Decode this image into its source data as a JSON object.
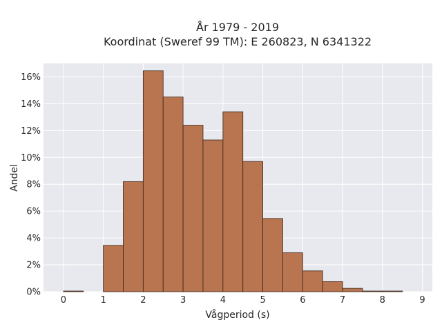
{
  "chart_data": {
    "type": "bar",
    "title": [
      "År 1979 - 2019",
      "Koordinat (Sweref 99 TM): E 260823, N 6341322"
    ],
    "xlabel": "Vågperiod (s)",
    "ylabel": "Andel",
    "bin_width": 0.5,
    "bins": [
      0,
      0.5,
      1,
      1.5,
      2,
      2.5,
      3,
      3.5,
      4,
      4.5,
      5,
      5.5,
      6,
      6.5,
      7,
      7.5,
      8
    ],
    "values": [
      0.05,
      0,
      3.45,
      8.2,
      16.45,
      14.5,
      12.4,
      11.3,
      13.4,
      9.7,
      5.45,
      2.9,
      1.55,
      0.75,
      0.25,
      0.05,
      0.05
    ],
    "xlim": [
      -0.5,
      9.25
    ],
    "ylim": [
      0,
      17
    ],
    "xticks": [
      0,
      1,
      2,
      3,
      4,
      5,
      6,
      7,
      8,
      9
    ],
    "xtick_labels": [
      "0",
      "1",
      "2",
      "3",
      "4",
      "5",
      "6",
      "7",
      "8",
      "9"
    ],
    "yticks": [
      0,
      2,
      4,
      6,
      8,
      10,
      12,
      14,
      16
    ],
    "ytick_labels": [
      "0%",
      "2%",
      "4%",
      "6%",
      "8%",
      "10%",
      "12%",
      "14%",
      "16%"
    ],
    "grid": true,
    "colors": {
      "bar_fill": "#B8754F",
      "bar_edge": "#3a2418",
      "plot_background": "#E8E8EF",
      "grid": "#ffffff"
    }
  }
}
